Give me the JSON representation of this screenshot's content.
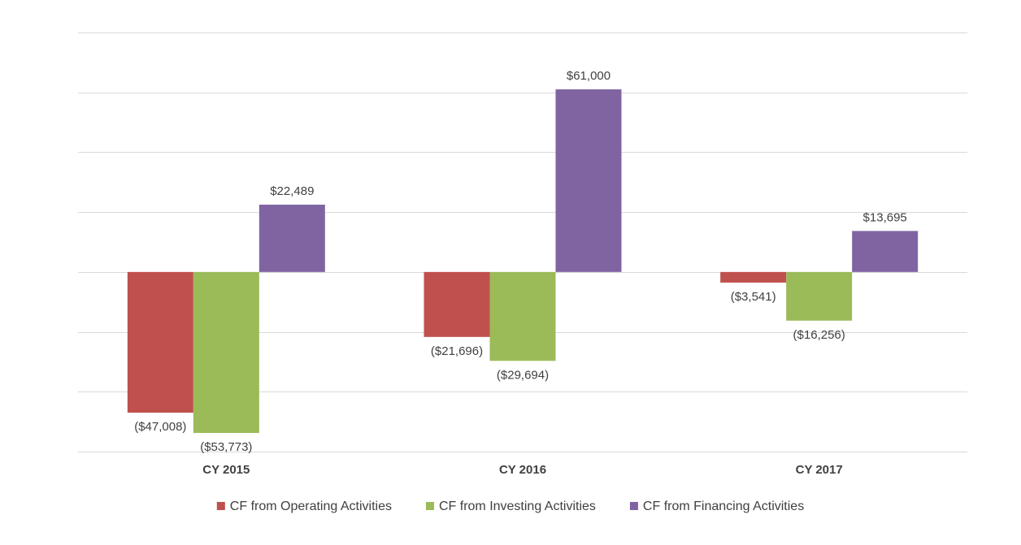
{
  "chart_data": {
    "type": "bar",
    "title": "",
    "xlabel": "",
    "ylabel": "",
    "categories": [
      "CY 2015",
      "CY 2016",
      "CY 2017"
    ],
    "series": [
      {
        "name": "CF from Operating Activities",
        "color": "#c0504d",
        "values": [
          -47008,
          -21696,
          -3541
        ],
        "labels": [
          "($47,008)",
          "($21,696)",
          "($3,541)"
        ]
      },
      {
        "name": "CF from Investing Activities",
        "color": "#9bbb59",
        "values": [
          -53773,
          -29694,
          -16256
        ],
        "labels": [
          "($53,773)",
          "($29,694)",
          "($16,256)"
        ]
      },
      {
        "name": "CF from Financing Activities",
        "color": "#8064a2",
        "values": [
          22489,
          61000,
          13695
        ],
        "labels": [
          "$22,489",
          "$61,000",
          "$13,695"
        ]
      }
    ],
    "ylim": [
      -60000,
      80000
    ],
    "grid": true,
    "legend_position": "bottom"
  }
}
